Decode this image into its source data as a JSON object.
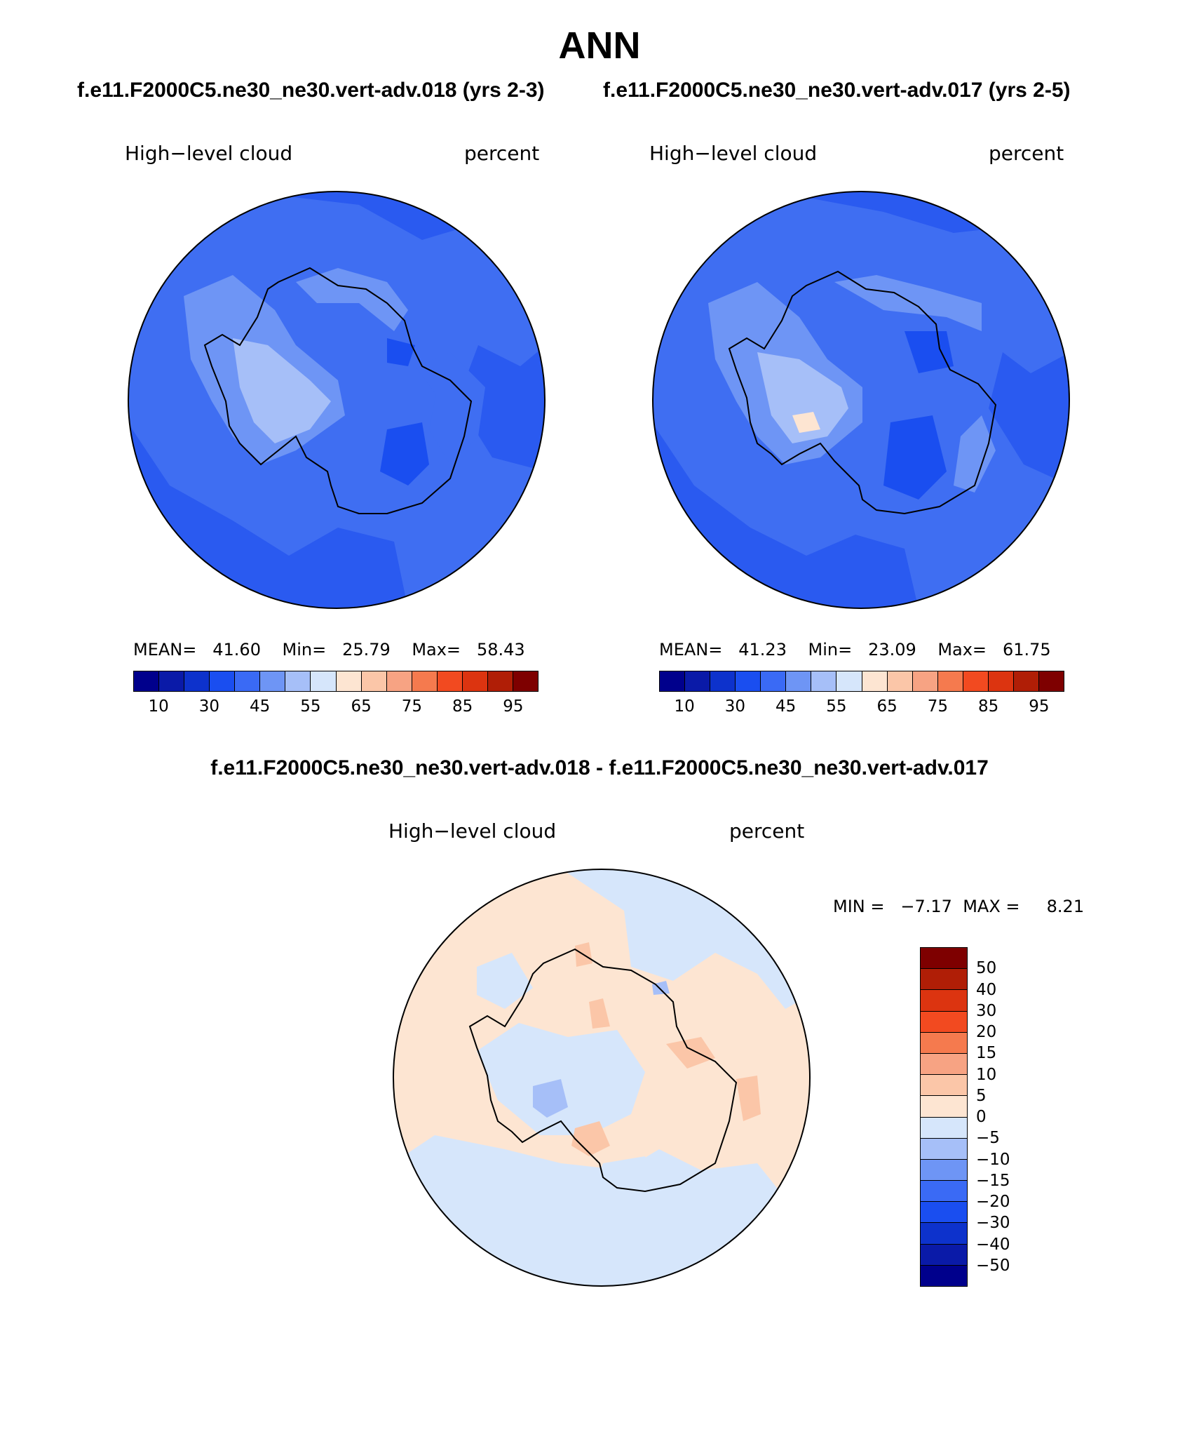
{
  "title": "ANN",
  "subtitle_left": "f.e11.F2000C5.ne30_ne30.vert-adv.018 (yrs 2-3)",
  "subtitle_right": "f.e11.F2000C5.ne30_ne30.vert-adv.017 (yrs 2-5)",
  "diff_title": "f.e11.F2000C5.ne30_ne30.vert-adv.018 - f.e11.F2000C5.ne30_ne30.vert-adv.017",
  "panels": [
    {
      "variable": "High−level cloud",
      "units": "percent",
      "mean_label": "MEAN=",
      "mean": "41.60",
      "min_label": "Min=",
      "min": "25.79",
      "max_label": "Max=",
      "max": "58.43",
      "base_color": "#2a5af0"
    },
    {
      "variable": "High−level cloud",
      "units": "percent",
      "mean_label": "MEAN=",
      "mean": "41.23",
      "min_label": "Min=",
      "min": "23.09",
      "max_label": "Max=",
      "max": "61.75",
      "base_color": "#2a5af0"
    }
  ],
  "diff_panel": {
    "variable": "High−level cloud",
    "units": "percent",
    "min_label": "MIN =",
    "min": "−7.17",
    "max_label": "MAX =",
    "max": "8.21",
    "base_color": "#fde5d2"
  },
  "colorbar_abs": {
    "colors": [
      "#00008c",
      "#0a1aa8",
      "#0d32cc",
      "#1a4ef0",
      "#3a6af5",
      "#6e95f5",
      "#a6bff8",
      "#d6e6fb",
      "#fde5d2",
      "#fbc6a8",
      "#f7a383",
      "#f57a4e",
      "#f24a20",
      "#dc3410",
      "#b01e06",
      "#7e0000"
    ],
    "ticks": [
      "10",
      "30",
      "45",
      "55",
      "65",
      "75",
      "85",
      "95"
    ]
  },
  "colorbar_diff": {
    "colors": [
      "#7e0000",
      "#b01e06",
      "#dc3410",
      "#f24a20",
      "#f57a4e",
      "#f7a383",
      "#fbc6a8",
      "#fde5d2",
      "#d6e6fb",
      "#a6bff8",
      "#6e95f5",
      "#3a6af5",
      "#1a4ef0",
      "#0d32cc",
      "#0a1aa8",
      "#00008c"
    ],
    "ticks": [
      "50",
      "40",
      "30",
      "20",
      "15",
      "10",
      "5",
      "0",
      "−5",
      "−10",
      "−15",
      "−20",
      "−30",
      "−40",
      "−50"
    ]
  }
}
